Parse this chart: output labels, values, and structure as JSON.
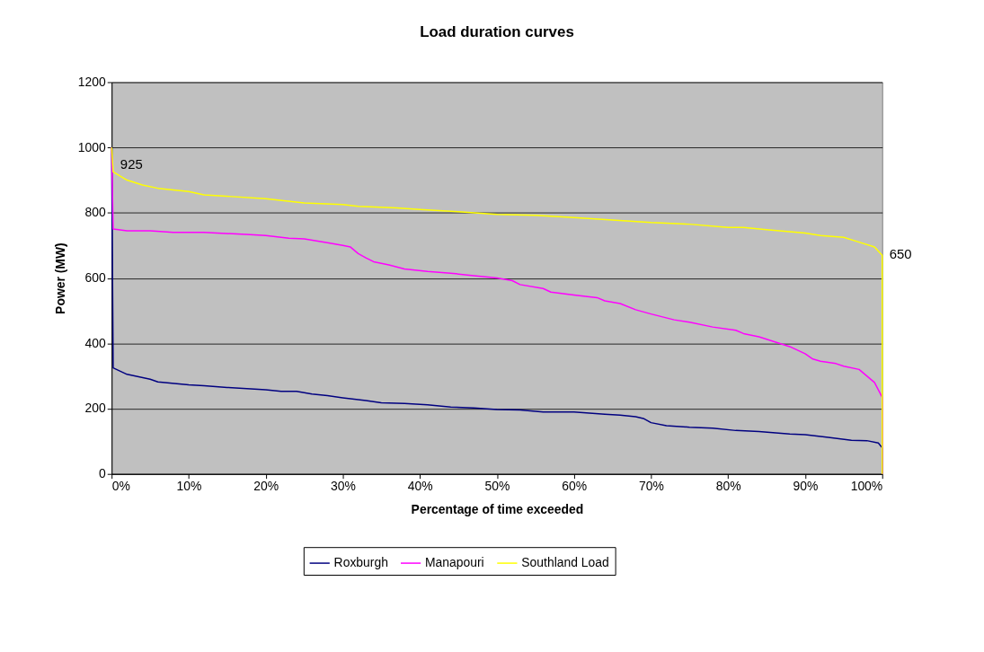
{
  "chart_data": {
    "type": "line",
    "title": "Load duration curves",
    "xlabel": "Percentage of time exceeded",
    "ylabel": "Power (MW)",
    "xlim": [
      0,
      100
    ],
    "xticks": [
      {
        "value": 0,
        "label": "0%"
      },
      {
        "value": 10,
        "label": "10%"
      },
      {
        "value": 20,
        "label": "20%"
      },
      {
        "value": 30,
        "label": "30%"
      },
      {
        "value": 40,
        "label": "40%"
      },
      {
        "value": 50,
        "label": "50%"
      },
      {
        "value": 60,
        "label": "60%"
      },
      {
        "value": 70,
        "label": "70%"
      },
      {
        "value": 80,
        "label": "80%"
      },
      {
        "value": 90,
        "label": "90%"
      },
      {
        "value": 100,
        "label": "100%"
      }
    ],
    "ylim": [
      0,
      1200
    ],
    "yticks": [
      0,
      200,
      400,
      600,
      800,
      1000,
      1200
    ],
    "grid": "y",
    "legend": "bottom",
    "marker": "none",
    "line_style": "solid",
    "annotations": [
      {
        "text": "925",
        "x": 0.2,
        "y": 925
      },
      {
        "text": "650",
        "x": 100,
        "y": 650
      }
    ],
    "series": [
      {
        "name": "Roxburgh",
        "color": "#000080",
        "x": [
          0,
          0.2,
          2,
          5,
          6,
          10,
          12,
          15,
          20,
          22,
          24,
          26,
          28,
          30,
          31,
          33,
          35,
          38,
          41,
          44,
          47,
          50,
          53,
          56,
          60,
          64,
          66,
          68,
          69,
          70,
          72,
          75,
          78,
          81,
          84,
          88,
          90,
          93,
          96,
          98,
          99.5,
          100,
          100
        ],
        "values": [
          1000,
          325,
          305,
          290,
          282,
          273,
          270,
          265,
          258,
          253,
          253,
          245,
          240,
          233,
          230,
          225,
          218,
          216,
          212,
          205,
          202,
          197,
          196,
          190,
          190,
          183,
          180,
          175,
          170,
          157,
          148,
          143,
          140,
          133,
          130,
          122,
          120,
          112,
          103,
          102,
          95,
          80,
          0
        ]
      },
      {
        "name": "Manapouri",
        "color": "#ff00ff",
        "x": [
          0,
          0.2,
          2,
          5,
          8,
          12,
          18,
          20,
          23,
          25,
          28,
          30,
          31,
          32,
          33,
          34,
          36,
          38,
          41,
          44,
          47,
          50,
          52,
          53,
          56,
          57,
          60,
          63,
          64,
          66,
          68,
          70,
          73,
          75,
          78,
          81,
          82,
          84,
          86,
          88,
          90,
          91,
          92,
          94,
          95,
          97,
          98,
          99,
          100,
          100
        ],
        "values": [
          1000,
          750,
          745,
          745,
          740,
          740,
          733,
          730,
          722,
          720,
          708,
          700,
          695,
          675,
          662,
          650,
          640,
          628,
          620,
          615,
          607,
          600,
          592,
          580,
          568,
          557,
          548,
          540,
          530,
          522,
          503,
          490,
          472,
          465,
          450,
          440,
          430,
          420,
          405,
          390,
          368,
          352,
          345,
          338,
          330,
          320,
          300,
          280,
          235,
          0
        ]
      },
      {
        "name": "Southland Load",
        "color": "#ffff00",
        "x": [
          0,
          0.2,
          2,
          4,
          6,
          10,
          12,
          20,
          25,
          30,
          32,
          37,
          40,
          45,
          50,
          55,
          60,
          65,
          70,
          75,
          80,
          82,
          85,
          90,
          92,
          95,
          97,
          99,
          100,
          100
        ],
        "values": [
          1000,
          925,
          900,
          885,
          875,
          865,
          855,
          843,
          830,
          825,
          820,
          815,
          810,
          803,
          795,
          792,
          785,
          778,
          770,
          765,
          755,
          755,
          748,
          738,
          730,
          725,
          710,
          695,
          670,
          0
        ]
      }
    ]
  }
}
